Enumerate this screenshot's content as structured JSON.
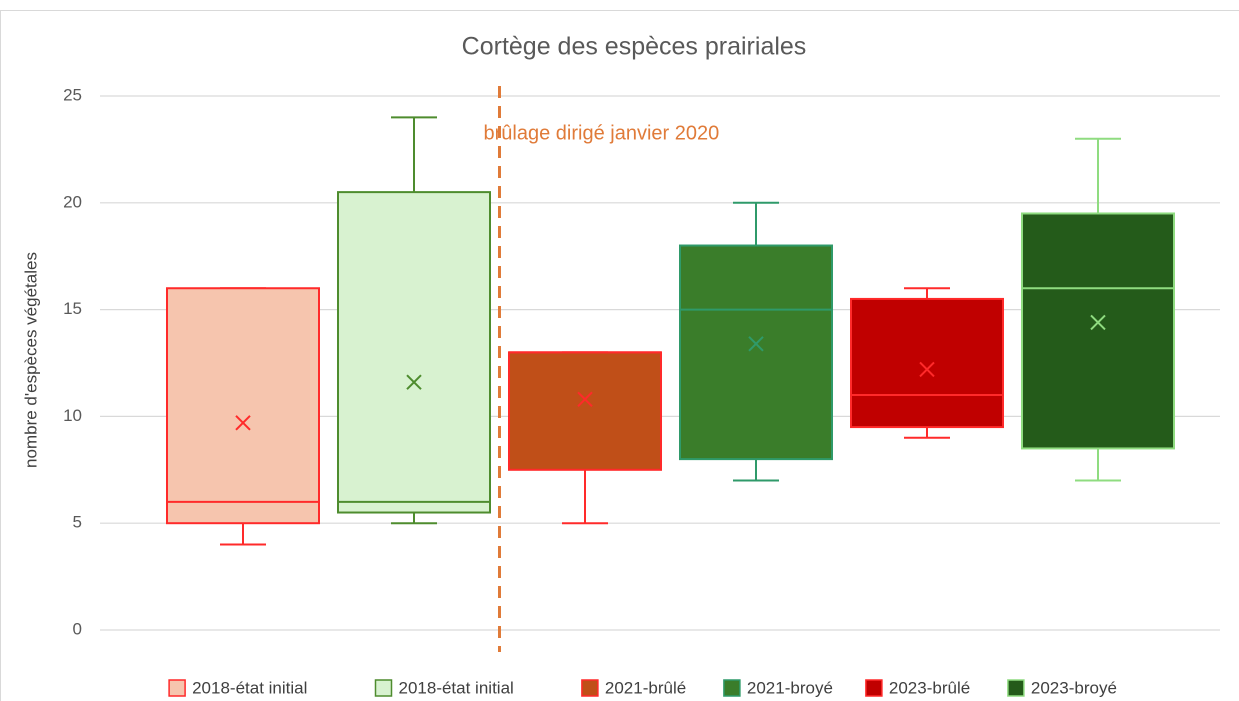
{
  "chart_data": {
    "type": "box",
    "title": "Cortège des espèces prairiales",
    "y_label": "nombre d'espèces végétales",
    "annotation": "brûlage dirigé janvier 2020",
    "annotation_color": "#e07b39",
    "ylim": [
      0,
      25
    ],
    "yticks": [
      0,
      5,
      10,
      15,
      20,
      25
    ],
    "grid": true,
    "series": [
      {
        "name": "2018-état initial",
        "color": "#f6c5ae",
        "edge": "#ff2a2a",
        "min": 4,
        "q1": 5,
        "median": 6,
        "q3": 16,
        "max": 16,
        "mean": 9.7
      },
      {
        "name": "2018-état initial",
        "color": "#d8f2d0",
        "edge": "#4e8c2e",
        "min": 5,
        "q1": 5.5,
        "median": 6,
        "q3": 20.5,
        "max": 24,
        "mean": 11.6
      },
      {
        "name": "2021-brûlé",
        "color": "#c04f18",
        "edge": "#ff2a2a",
        "min": 5,
        "q1": 7.5,
        "median": 13,
        "q3": 13,
        "max": 13,
        "mean": 10.8
      },
      {
        "name": "2021-broyé",
        "color": "#3a7d2a",
        "edge": "#2f9a6a",
        "min": 7,
        "q1": 8,
        "median": 15,
        "q3": 18,
        "max": 20,
        "mean": 13.4
      },
      {
        "name": "2023-brûlé",
        "color": "#c00000",
        "edge": "#ff2a2a",
        "min": 9,
        "q1": 9.5,
        "median": 11,
        "q3": 15.5,
        "max": 16,
        "mean": 12.2
      },
      {
        "name": "2023-broyé",
        "color": "#245b1a",
        "edge": "#8fdc80",
        "min": 7,
        "q1": 8.5,
        "median": 16,
        "q3": 19.5,
        "max": 23,
        "mean": 14.4
      }
    ]
  }
}
